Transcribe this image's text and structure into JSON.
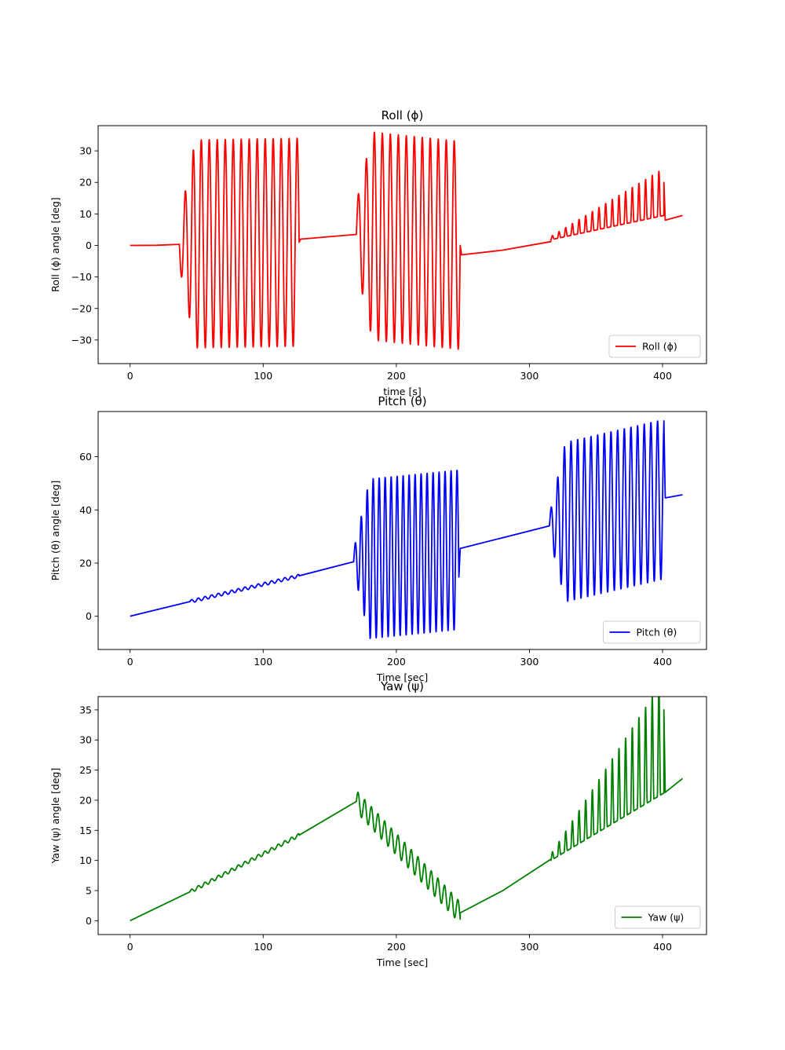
{
  "chart_data": [
    {
      "type": "line",
      "title": "Roll (ϕ)",
      "xlabel": "time [s]",
      "ylabel": "Roll (ϕ) angle [deg]",
      "xlim": [
        -24,
        433
      ],
      "ylim": [
        -37.5,
        38
      ],
      "xticks": [
        "0",
        "100",
        "200",
        "300",
        "400"
      ],
      "yticks": [
        "−30",
        "−20",
        "−10",
        "0",
        "10",
        "20",
        "30"
      ],
      "legend_position": "lower right",
      "series": [
        {
          "name": "Roll (ϕ)",
          "color": "#ff0000",
          "segments": [
            {
              "kind": "line",
              "points": [
                [
                  0,
                  0
                ],
                [
                  20,
                  0.05
                ],
                [
                  37,
                  0.35
                ]
              ]
            },
            {
              "kind": "osc",
              "t0": 37,
              "t1": 127,
              "period": 6,
              "amp0": 7,
              "amp1": 33,
              "ramp": 12,
              "base0": 0.4,
              "base1": 1.0,
              "sign": -1
            },
            {
              "kind": "line",
              "points": [
                [
                  128,
                  2
                ],
                [
                  170,
                  3.5
                ]
              ]
            },
            {
              "kind": "osc",
              "t0": 170,
              "t1": 248,
              "period": 6,
              "amp0": 10,
              "amp1": 33,
              "ramp": 12,
              "base0": 3.5,
              "base1": 0,
              "sign": 1
            },
            {
              "kind": "line",
              "points": [
                [
                  249,
                  -3
                ],
                [
                  280,
                  -1.5
                ],
                [
                  316,
                  1.2
                ]
              ]
            },
            {
              "kind": "osc",
              "t0": 316,
              "t1": 401,
              "period": 5,
              "amp0": 0.5,
              "amp1": 7.5,
              "ramp": 0,
              "base0": 2,
              "base1": 12.5,
              "sign": 1,
              "halfwave": true
            },
            {
              "kind": "line",
              "points": [
                [
                  401,
                  20
                ],
                [
                  402,
                  8
                ],
                [
                  415,
                  9.5
                ]
              ]
            }
          ]
        }
      ]
    },
    {
      "type": "line",
      "title": "Pitch (θ)",
      "xlabel": "Time [sec]",
      "ylabel": "Pitch (θ) angle [deg]",
      "xlim": [
        -24,
        433
      ],
      "ylim": [
        -12.5,
        77
      ],
      "xticks": [
        "0",
        "100",
        "200",
        "300",
        "400"
      ],
      "yticks": [
        "0",
        "20",
        "40",
        "60"
      ],
      "legend_position": "lower right",
      "series": [
        {
          "name": "Pitch (θ)",
          "color": "#0000ff",
          "segments": [
            {
              "kind": "line",
              "points": [
                [
                  0,
                  0
                ],
                [
                  45,
                  5.5
                ]
              ]
            },
            {
              "kind": "osc",
              "t0": 45,
              "t1": 127,
              "period": 5,
              "amp0": 0.6,
              "amp1": 0.6,
              "ramp": 0,
              "base0": 5.5,
              "base1": 15.2,
              "sign": 1
            },
            {
              "kind": "line",
              "points": [
                [
                  127,
                  15.2
                ],
                [
                  168,
                  20.5
                ]
              ]
            },
            {
              "kind": "osc",
              "t0": 168,
              "t1": 247,
              "period": 4.5,
              "amp0": 4,
              "amp1": 30,
              "ramp": 12,
              "base0": 21,
              "base1": 25,
              "sign": 1
            },
            {
              "kind": "line",
              "points": [
                [
                  248,
                  25.5
                ],
                [
                  315,
                  34
                ]
              ]
            },
            {
              "kind": "osc",
              "t0": 315,
              "t1": 401,
              "period": 5,
              "amp0": 4,
              "amp1": 30,
              "ramp": 12,
              "base0": 34,
              "base1": 44,
              "sign": 1
            },
            {
              "kind": "line",
              "points": [
                [
                  401,
                  73.5
                ],
                [
                  402,
                  44.5
                ],
                [
                  415,
                  45.7
                ]
              ]
            }
          ]
        }
      ]
    },
    {
      "type": "line",
      "title": "Yaw (ψ)",
      "xlabel": "Time [sec]",
      "ylabel": "Yaw (ψ) angle [deg]",
      "xlim": [
        -24,
        433
      ],
      "ylim": [
        -2.3,
        37.2
      ],
      "xticks": [
        "0",
        "100",
        "200",
        "300",
        "400"
      ],
      "yticks": [
        "0",
        "5",
        "10",
        "15",
        "20",
        "25",
        "30",
        "35"
      ],
      "legend_position": "lower right",
      "series": [
        {
          "name": "Yaw (ψ)",
          "color": "#008000",
          "segments": [
            {
              "kind": "line",
              "points": [
                [
                  0,
                  0
                ],
                [
                  45,
                  4.8
                ]
              ]
            },
            {
              "kind": "osc",
              "t0": 45,
              "t1": 127,
              "period": 5,
              "amp0": 0.3,
              "amp1": 0.3,
              "ramp": 0,
              "base0": 4.8,
              "base1": 14.2,
              "sign": 1
            },
            {
              "kind": "line",
              "points": [
                [
                  127,
                  14.2
                ],
                [
                  170,
                  19.8
                ]
              ]
            },
            {
              "kind": "osc",
              "t0": 170,
              "t1": 248,
              "period": 5,
              "amp0": 1.8,
              "amp1": 1.8,
              "ramp": 0,
              "base0": 19.8,
              "base1": 1.3,
              "sign": 1
            },
            {
              "kind": "line",
              "points": [
                [
                  248,
                  1.3
                ],
                [
                  280,
                  5
                ],
                [
                  316,
                  10.2
                ]
              ]
            },
            {
              "kind": "osc",
              "t0": 316,
              "t1": 401,
              "period": 5,
              "amp0": 0.5,
              "amp1": 9.5,
              "ramp": 0,
              "base0": 10.2,
              "base1": 25,
              "sign": 1,
              "halfwave": true
            },
            {
              "kind": "line",
              "points": [
                [
                  401,
                  35
                ],
                [
                  402,
                  21.3
                ],
                [
                  415,
                  23.6
                ]
              ]
            }
          ]
        }
      ]
    }
  ]
}
